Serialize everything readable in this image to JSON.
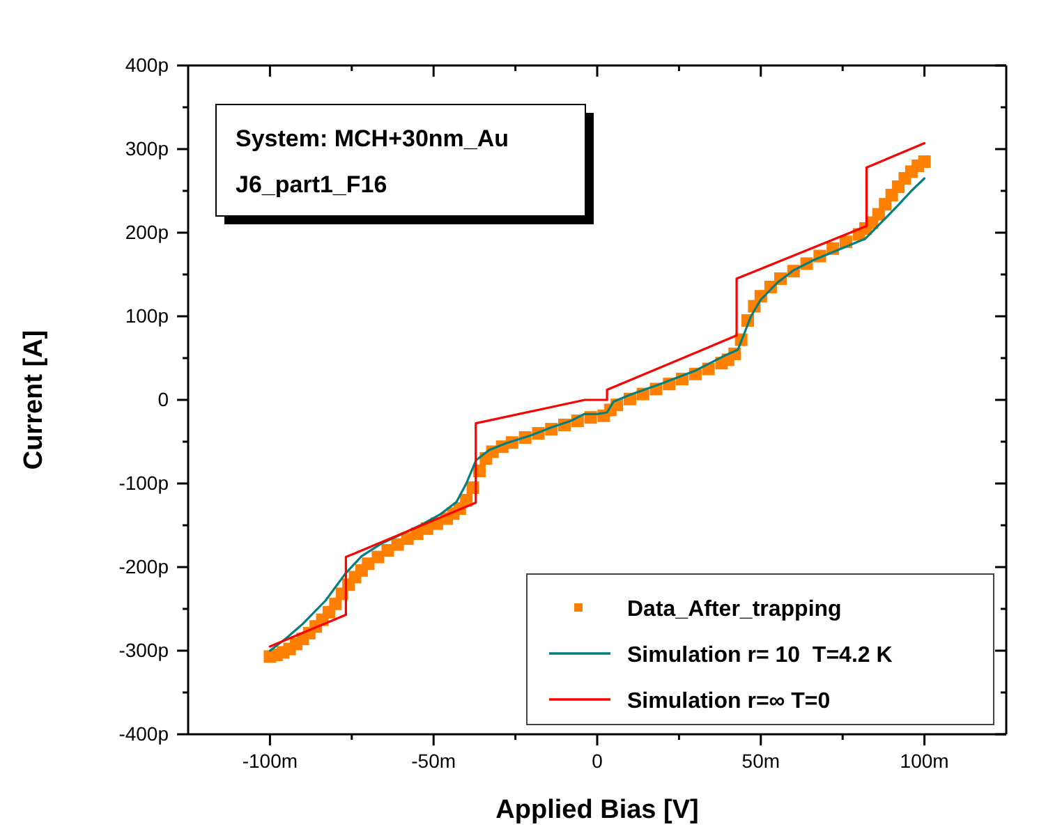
{
  "chart_data": {
    "type": "line",
    "xlabel": "Applied Bias [V]",
    "ylabel": "Current [A]",
    "annotations": [
      "System: MCH+30nm_Au",
      "J6_part1_F16"
    ],
    "xlim": [
      -125,
      125
    ],
    "ylim": [
      -400,
      400
    ],
    "xticks": [
      {
        "value": -100,
        "label": "-100m"
      },
      {
        "value": -75,
        "label": null
      },
      {
        "value": -50,
        "label": "-50m"
      },
      {
        "value": -25,
        "label": null
      },
      0,
      {
        "value": 25,
        "label": null
      },
      {
        "value": 50,
        "label": "50m"
      },
      {
        "value": 75,
        "label": null
      },
      {
        "value": 100,
        "label": "100m"
      }
    ],
    "yticks": [
      {
        "value": -400,
        "label": "-400p"
      },
      {
        "value": -350,
        "label": null
      },
      {
        "value": -300,
        "label": "-300p"
      },
      {
        "value": -250,
        "label": null
      },
      {
        "value": -200,
        "label": "-200p"
      },
      {
        "value": -150,
        "label": null
      },
      {
        "value": -100,
        "label": "-100p"
      },
      {
        "value": -50,
        "label": null
      },
      0,
      {
        "value": 50,
        "label": null
      },
      {
        "value": 100,
        "label": "100p"
      },
      {
        "value": 150,
        "label": null
      },
      {
        "value": 200,
        "label": "200p"
      },
      {
        "value": 250,
        "label": null
      },
      {
        "value": 300,
        "label": "300p"
      },
      {
        "value": 350,
        "label": null
      },
      {
        "value": 400,
        "label": "400p"
      }
    ],
    "grid": false,
    "legend": "bottom right",
    "series": [
      {
        "name": "Data_After_trapping",
        "type": "scatter",
        "marker": "square",
        "color": "#ff8000",
        "x": [
          -100,
          -98,
          -96,
          -94,
          -92,
          -90,
          -88,
          -86,
          -84,
          -82,
          -80,
          -78,
          -76,
          -74,
          -72,
          -70,
          -67,
          -64,
          -61,
          -58,
          -55,
          -52,
          -49,
          -46,
          -44,
          -42,
          -40,
          -38,
          -36,
          -34,
          -32,
          -29,
          -26,
          -22,
          -18,
          -14,
          -10,
          -6,
          -2,
          2,
          4,
          6,
          10,
          14,
          18,
          22,
          26,
          30,
          34,
          38,
          40,
          42,
          44,
          46,
          48,
          50,
          53,
          56,
          60,
          64,
          68,
          72,
          76,
          80,
          82,
          84,
          86,
          88,
          90,
          92,
          94,
          96,
          98,
          100
        ],
        "values": [
          -307,
          -305,
          -302,
          -298,
          -292,
          -286,
          -279,
          -271,
          -263,
          -254,
          -244,
          -232,
          -221,
          -212,
          -204,
          -196,
          -188,
          -180,
          -173,
          -166,
          -160,
          -154,
          -148,
          -142,
          -136,
          -130,
          -120,
          -105,
          -85,
          -70,
          -62,
          -56,
          -51,
          -45,
          -40,
          -35,
          -30,
          -25,
          -21,
          -19,
          -12,
          -6,
          1,
          7,
          13,
          19,
          25,
          31,
          37,
          44,
          48,
          55,
          72,
          95,
          112,
          124,
          135,
          145,
          154,
          163,
          172,
          181,
          189,
          198,
          205,
          212,
          222,
          234,
          245,
          255,
          265,
          273,
          280,
          285
        ]
      },
      {
        "name": "Simulation r= 10  T=4.2 K",
        "color": "#00807f",
        "x": [
          -100,
          -95,
          -90,
          -83,
          -77,
          -72,
          -66,
          -60,
          -54,
          -48,
          -43,
          -40,
          -37,
          -33,
          -28,
          -20,
          -14,
          -8,
          -4,
          0,
          3,
          5,
          10,
          20,
          30,
          39,
          43,
          45,
          47,
          50,
          55,
          60,
          66,
          74,
          82,
          87,
          92,
          96,
          100
        ],
        "values": [
          -300,
          -285,
          -268,
          -240,
          -208,
          -187,
          -172,
          -161,
          -150,
          -137,
          -122,
          -100,
          -72,
          -60,
          -52,
          -42,
          -33,
          -25,
          -17,
          -17,
          -15,
          -2,
          6,
          20,
          35,
          53,
          60,
          80,
          100,
          120,
          140,
          155,
          167,
          180,
          193,
          213,
          233,
          250,
          265
        ]
      },
      {
        "name": "Simulation r=∞ T=0",
        "color": "#ff0000",
        "x": [
          -100,
          -76.8,
          -76.8,
          -37.1,
          -37.1,
          -3.8,
          3,
          3,
          42.6,
          42.6,
          82.3,
          82.3,
          100
        ],
        "values": [
          -295,
          -257,
          -188,
          -123,
          -28,
          0,
          0,
          12,
          77,
          145,
          208,
          278,
          307
        ]
      }
    ]
  }
}
